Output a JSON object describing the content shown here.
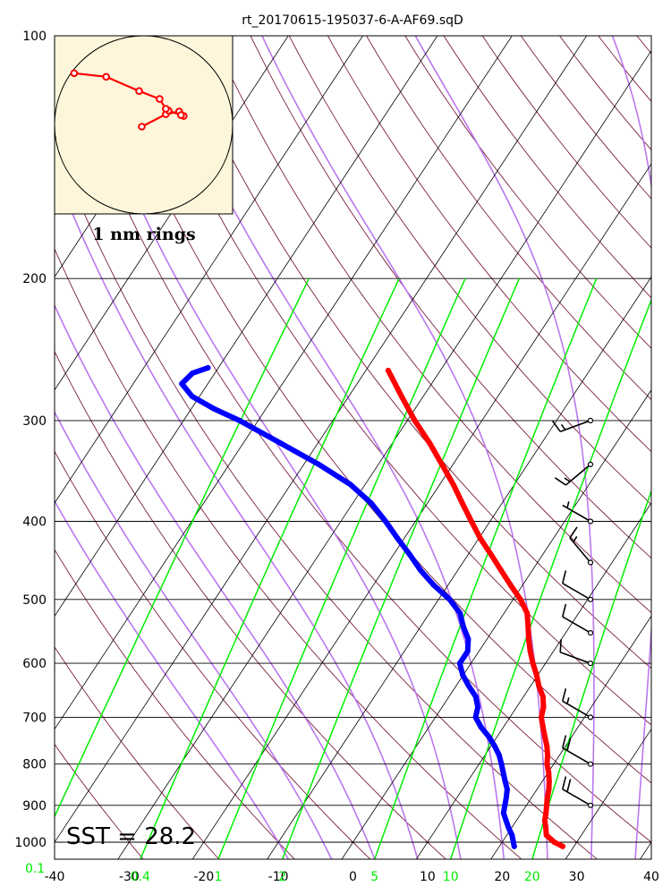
{
  "chart_data": {
    "type": "line",
    "title": "rt_20170615-195037-6-A-AF69.sqD",
    "xlabel": "",
    "ylabel": "",
    "xlim": [
      -40,
      40
    ],
    "ylim": [
      1050,
      100
    ],
    "x_ticks": [
      "-40",
      "-30",
      "-20",
      "-10",
      "0",
      "10",
      "20",
      "30",
      "40"
    ],
    "y_ticks": [
      "100",
      "200",
      "300",
      "400",
      "500",
      "600",
      "700",
      "800",
      "900",
      "1000"
    ],
    "mixing_ratio_labels": [
      {
        "label": "0.1",
        "value": 0.1
      },
      {
        "label": "0.4",
        "value": 0.4
      },
      {
        "label": "1",
        "value": 1
      },
      {
        "label": "2",
        "value": 2
      },
      {
        "label": "5",
        "value": 5
      },
      {
        "label": "10",
        "value": 10
      },
      {
        "label": "20",
        "value": 20
      }
    ],
    "annotation": "SST = 28.2",
    "inset_label": "1 nm rings",
    "colors": {
      "temperature": "#ff0000",
      "dewpoint": "#0000ff",
      "mixing_ratio": "#00ee00",
      "moist_adiabat": "#bb77ee",
      "dry_adiabat": "#7a1f3c",
      "isotherm": "#000000",
      "inset_background": "#fdf6da"
    },
    "series": [
      {
        "name": "temperature",
        "points": [
          {
            "p": 1012,
            "t": 28.5
          },
          {
            "p": 1000,
            "t": 27.0
          },
          {
            "p": 980,
            "t": 25.3
          },
          {
            "p": 960,
            "t": 24.6
          },
          {
            "p": 940,
            "t": 23.8
          },
          {
            "p": 920,
            "t": 23.3
          },
          {
            "p": 900,
            "t": 22.7
          },
          {
            "p": 880,
            "t": 22.1
          },
          {
            "p": 860,
            "t": 21.6
          },
          {
            "p": 840,
            "t": 20.9
          },
          {
            "p": 820,
            "t": 20.1
          },
          {
            "p": 800,
            "t": 19.1
          },
          {
            "p": 780,
            "t": 18.4
          },
          {
            "p": 760,
            "t": 17.5
          },
          {
            "p": 740,
            "t": 16.4
          },
          {
            "p": 720,
            "t": 15.3
          },
          {
            "p": 700,
            "t": 14.2
          },
          {
            "p": 680,
            "t": 13.6
          },
          {
            "p": 660,
            "t": 12.6
          },
          {
            "p": 640,
            "t": 11.1
          },
          {
            "p": 620,
            "t": 9.8
          },
          {
            "p": 600,
            "t": 8.3
          },
          {
            "p": 580,
            "t": 6.9
          },
          {
            "p": 560,
            "t": 5.6
          },
          {
            "p": 540,
            "t": 4.4
          },
          {
            "p": 520,
            "t": 3.1
          },
          {
            "p": 500,
            "t": 1.0
          },
          {
            "p": 480,
            "t": -1.6
          },
          {
            "p": 460,
            "t": -4.2
          },
          {
            "p": 440,
            "t": -6.9
          },
          {
            "p": 420,
            "t": -9.8
          },
          {
            "p": 400,
            "t": -12.5
          },
          {
            "p": 380,
            "t": -15.3
          },
          {
            "p": 360,
            "t": -18.2
          },
          {
            "p": 340,
            "t": -21.5
          },
          {
            "p": 320,
            "t": -25.0
          },
          {
            "p": 300,
            "t": -29.0
          },
          {
            "p": 280,
            "t": -32.9
          },
          {
            "p": 260,
            "t": -37.0
          }
        ]
      },
      {
        "name": "dewpoint",
        "points": [
          {
            "p": 1012,
            "t": 22.0
          },
          {
            "p": 1000,
            "t": 21.5
          },
          {
            "p": 980,
            "t": 20.7
          },
          {
            "p": 960,
            "t": 19.6
          },
          {
            "p": 940,
            "t": 18.6
          },
          {
            "p": 920,
            "t": 17.6
          },
          {
            "p": 900,
            "t": 17.1
          },
          {
            "p": 880,
            "t": 16.6
          },
          {
            "p": 860,
            "t": 16.0
          },
          {
            "p": 840,
            "t": 15.0
          },
          {
            "p": 820,
            "t": 14.0
          },
          {
            "p": 800,
            "t": 13.0
          },
          {
            "p": 780,
            "t": 11.9
          },
          {
            "p": 760,
            "t": 10.5
          },
          {
            "p": 740,
            "t": 8.9
          },
          {
            "p": 720,
            "t": 7.0
          },
          {
            "p": 700,
            "t": 5.4
          },
          {
            "p": 680,
            "t": 4.8
          },
          {
            "p": 660,
            "t": 3.6
          },
          {
            "p": 640,
            "t": 1.7
          },
          {
            "p": 620,
            "t": -0.1
          },
          {
            "p": 600,
            "t": -1.5
          },
          {
            "p": 590,
            "t": -1.5
          },
          {
            "p": 580,
            "t": -1.5
          },
          {
            "p": 560,
            "t": -2.5
          },
          {
            "p": 540,
            "t": -4.3
          },
          {
            "p": 520,
            "t": -5.9
          },
          {
            "p": 500,
            "t": -8.5
          },
          {
            "p": 480,
            "t": -11.9
          },
          {
            "p": 460,
            "t": -15.0
          },
          {
            "p": 440,
            "t": -17.8
          },
          {
            "p": 420,
            "t": -20.9
          },
          {
            "p": 400,
            "t": -24.0
          },
          {
            "p": 380,
            "t": -27.5
          },
          {
            "p": 360,
            "t": -32.0
          },
          {
            "p": 340,
            "t": -38.0
          },
          {
            "p": 320,
            "t": -45.0
          },
          {
            "p": 300,
            "t": -52.5
          },
          {
            "p": 290,
            "t": -57.0
          },
          {
            "p": 280,
            "t": -61.0
          },
          {
            "p": 270,
            "t": -63.5
          },
          {
            "p": 262,
            "t": -63.0
          },
          {
            "p": 258,
            "t": -61.4
          }
        ]
      }
    ],
    "wind_barbs": [
      {
        "p": 900,
        "speed_kt": 20,
        "direction_deg": 300
      },
      {
        "p": 800,
        "speed_kt": 20,
        "direction_deg": 300
      },
      {
        "p": 700,
        "speed_kt": 15,
        "direction_deg": 300
      },
      {
        "p": 600,
        "speed_kt": 10,
        "direction_deg": 290
      },
      {
        "p": 550,
        "speed_kt": 10,
        "direction_deg": 300
      },
      {
        "p": 500,
        "speed_kt": 10,
        "direction_deg": 300
      },
      {
        "p": 450,
        "speed_kt": 15,
        "direction_deg": 320
      },
      {
        "p": 400,
        "speed_kt": 5,
        "direction_deg": 300
      },
      {
        "p": 340,
        "speed_kt": 15,
        "direction_deg": 230
      },
      {
        "p": 300,
        "speed_kt": 15,
        "direction_deg": 250
      }
    ],
    "hodograph": {
      "ring_spacing_nm": 1,
      "points": [
        {
          "x": -0.02,
          "y": -0.02
        },
        {
          "x": 0.25,
          "y": 0.12
        },
        {
          "x": 0.4,
          "y": 0.15
        },
        {
          "x": 0.45,
          "y": 0.1
        },
        {
          "x": 0.42,
          "y": 0.11
        },
        {
          "x": 0.28,
          "y": 0.16
        },
        {
          "x": 0.25,
          "y": 0.18
        },
        {
          "x": 0.18,
          "y": 0.29
        },
        {
          "x": -0.05,
          "y": 0.38
        },
        {
          "x": -0.42,
          "y": 0.54
        },
        {
          "x": -0.78,
          "y": 0.58
        }
      ]
    }
  }
}
